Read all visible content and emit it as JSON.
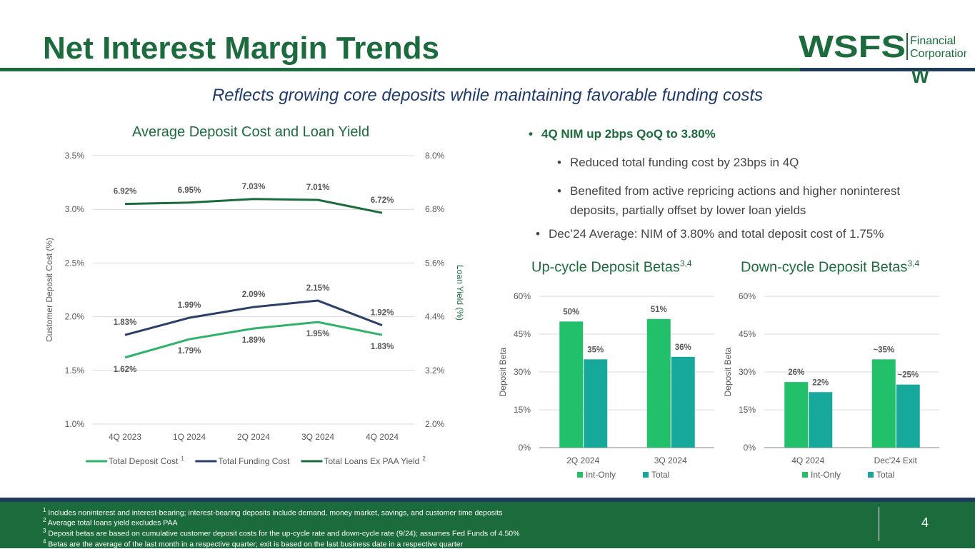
{
  "page": {
    "title": "Net Interest Margin Trends",
    "subtitle": "Reflects growing core deposits while maintaining favorable funding costs",
    "page_number": "4"
  },
  "logo": {
    "wordmark": "WSFS",
    "line1": "Financial",
    "line2": "Corporation",
    "mark": "W"
  },
  "bullets": {
    "b1": "4Q NIM up 2bps QoQ to 3.80%",
    "b2": "Reduced total funding cost by 23bps in 4Q",
    "b3": "Benefited from active repricing actions and higher noninterest deposits, partially offset by lower loan yields",
    "b4": "Dec’24 Average: NIM of 3.80% and total deposit cost of 1.75%",
    "bullet_char": "•"
  },
  "footnotes": [
    {
      "num": "1",
      "text": "Includes noninterest and interest-bearing; interest-bearing deposits include demand, money market, savings, and customer time deposits"
    },
    {
      "num": "2",
      "text": "Average total loans yield excludes PAA"
    },
    {
      "num": "3",
      "text": "Deposit betas are based on cumulative customer deposit costs for the up-cycle rate and down-cycle rate (9/24); assumes Fed Funds of 4.50%"
    },
    {
      "num": "4",
      "text": "Betas are the average of the last month in a respective quarter; exit is based on the last business date in a respective quarter"
    }
  ],
  "colors": {
    "green_dark": "#1c6b3d",
    "navy": "#2b3f6b",
    "green_light": "#2fb36a",
    "bar_green": "#22c06a",
    "bar_teal": "#17a89c"
  },
  "chart_data": [
    {
      "type": "line",
      "title": "Average Deposit Cost and Loan Yield",
      "categories": [
        "4Q 2023",
        "1Q 2024",
        "2Q 2024",
        "3Q 2024",
        "4Q 2024"
      ],
      "ylabel": "Customer Deposit Cost (%)",
      "y2label": "Loan Yield (%)",
      "ylim": [
        1.0,
        3.5
      ],
      "y_ticks": [
        "1.0%",
        "1.5%",
        "2.0%",
        "2.5%",
        "3.0%",
        "3.5%"
      ],
      "y2lim": [
        2.0,
        8.0
      ],
      "y2_ticks": [
        "2.0%",
        "3.2%",
        "4.4%",
        "5.6%",
        "6.8%",
        "8.0%"
      ],
      "series": [
        {
          "name": "Total Deposit Cost",
          "sup": "1",
          "axis": "left",
          "color": "#2fb36a",
          "values": [
            1.62,
            1.79,
            1.89,
            1.95,
            1.83
          ],
          "labels": [
            "1.62%",
            "1.79%",
            "1.89%",
            "1.95%",
            "1.83%"
          ],
          "label_pos": "below"
        },
        {
          "name": "Total Funding Cost",
          "sup": "",
          "axis": "left",
          "color": "#2b3f6b",
          "values": [
            1.83,
            1.99,
            2.09,
            2.15,
            1.92
          ],
          "labels": [
            "1.83%",
            "1.99%",
            "2.09%",
            "2.15%",
            "1.92%"
          ],
          "label_pos": "above"
        },
        {
          "name": "Total Loans Ex PAA Yield",
          "sup": "2",
          "axis": "right",
          "color": "#1c6b3d",
          "values": [
            6.92,
            6.95,
            7.03,
            7.01,
            6.72
          ],
          "labels": [
            "6.92%",
            "6.95%",
            "7.03%",
            "7.01%",
            "6.72%"
          ],
          "label_pos": "above"
        }
      ]
    },
    {
      "type": "bar",
      "title": "Up-cycle Deposit Betas",
      "title_sup": "3,4",
      "categories": [
        "2Q 2024",
        "3Q 2024"
      ],
      "ylabel": "Deposit Beta",
      "ylim": [
        0,
        60
      ],
      "y_ticks": [
        "0%",
        "15%",
        "30%",
        "45%",
        "60%"
      ],
      "series": [
        {
          "name": "Int-Only",
          "color": "#22c06a",
          "values": [
            50,
            51
          ],
          "labels": [
            "50%",
            "51%"
          ]
        },
        {
          "name": "Total",
          "color": "#17a89c",
          "values": [
            35,
            36
          ],
          "labels": [
            "35%",
            "36%"
          ]
        }
      ]
    },
    {
      "type": "bar",
      "title": "Down-cycle Deposit Betas",
      "title_sup": "3,4",
      "categories": [
        "4Q 2024",
        "Dec'24 Exit"
      ],
      "ylabel": "Deposit Beta",
      "ylim": [
        0,
        60
      ],
      "y_ticks": [
        "0%",
        "15%",
        "30%",
        "45%",
        "60%"
      ],
      "series": [
        {
          "name": "Int-Only",
          "color": "#22c06a",
          "values": [
            26,
            35
          ],
          "labels": [
            "26%",
            "~35%"
          ]
        },
        {
          "name": "Total",
          "color": "#17a89c",
          "values": [
            22,
            25
          ],
          "labels": [
            "22%",
            "~25%"
          ]
        }
      ]
    }
  ]
}
